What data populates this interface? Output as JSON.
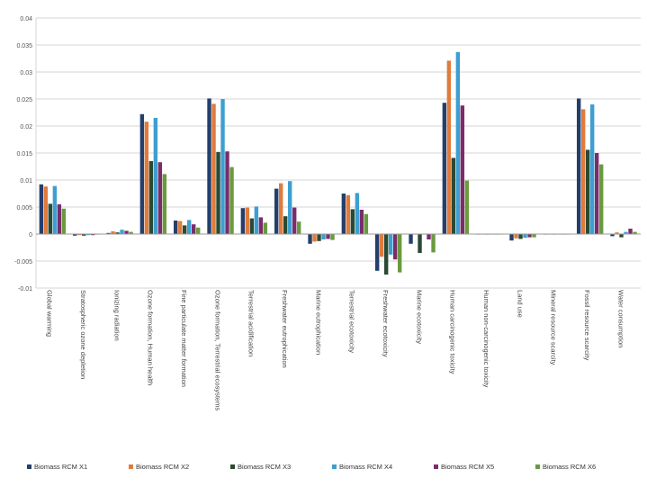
{
  "chart_data": {
    "type": "bar",
    "title": "",
    "xlabel": "",
    "ylabel": "",
    "ylim": [
      -0.01,
      0.04
    ],
    "yticks": [
      -0.01,
      -0.005,
      0,
      0.005,
      0.01,
      0.015,
      0.02,
      0.025,
      0.03,
      0.035,
      0.04
    ],
    "ytick_labels": [
      "-0.01",
      "-0.005",
      "0",
      "0.005",
      "0.01",
      "0.015",
      "0.02",
      "0.025",
      "0.03",
      "0.035",
      "0.04"
    ],
    "grid": true,
    "legend_position": "bottom",
    "categories": [
      "Global warming",
      "Stratospheric ozone depletion",
      "Ionizing radiation",
      "Ozone formation, Human health",
      "Fine particulate matter formation",
      "Ozone formation, Terrestrial ecosystems",
      "Terrestrial acidification",
      "Freshwater eutrophication",
      "Marine eutrophication",
      "Terrestrial ecotoxicity",
      "Freshwater ecotoxicity",
      "Marine ecotoxicity",
      "Human carcinogenic toxicity",
      "Human non-carcinogenic toxicity",
      "Land use",
      "Mineral resource scarcity",
      "Fossil resource scarcity",
      "Water consumption"
    ],
    "series": [
      {
        "name": "Biomass RCM X1",
        "color": "#243f6b",
        "values": [
          0.0092,
          -0.0003,
          0.0002,
          0.0222,
          0.0025,
          0.0251,
          0.0048,
          0.0084,
          -0.0018,
          0.0075,
          -0.0068,
          -0.0018,
          0.0243,
          -0.0001,
          -0.0012,
          0.0,
          0.0251,
          -0.0004
        ]
      },
      {
        "name": "Biomass RCM X2",
        "color": "#e07b3c",
        "values": [
          0.0088,
          -0.0002,
          0.0005,
          0.0208,
          0.0024,
          0.0241,
          0.0049,
          0.0094,
          -0.0014,
          0.0072,
          -0.0042,
          -0.0001,
          0.0321,
          -0.0001,
          -0.0008,
          0.0,
          0.0231,
          0.0003
        ]
      },
      {
        "name": "Biomass RCM X3",
        "color": "#2a4a33",
        "values": [
          0.0056,
          -0.0003,
          0.0003,
          0.0135,
          0.0016,
          0.0152,
          0.0029,
          0.0033,
          -0.0013,
          0.0046,
          -0.0075,
          -0.0035,
          0.0141,
          -0.0001,
          -0.0009,
          0.0,
          0.0156,
          -0.0006
        ]
      },
      {
        "name": "Biomass RCM X4",
        "color": "#3d9fd1",
        "values": [
          0.0089,
          -0.0002,
          0.0008,
          0.0215,
          0.0026,
          0.025,
          0.0051,
          0.0098,
          -0.001,
          0.0076,
          -0.0038,
          -0.0001,
          0.0337,
          -0.0001,
          -0.0007,
          0.0,
          0.024,
          0.0004
        ]
      },
      {
        "name": "Biomass RCM X5",
        "color": "#7a2d6a",
        "values": [
          0.0055,
          -0.0002,
          0.0006,
          0.0133,
          0.0018,
          0.0153,
          0.0031,
          0.0049,
          -0.0009,
          0.0045,
          -0.0047,
          -0.001,
          0.0238,
          -0.0001,
          -0.0006,
          0.0,
          0.015,
          0.001
        ]
      },
      {
        "name": "Biomass RCM X6",
        "color": "#6a9a3e",
        "values": [
          0.0047,
          -0.0001,
          0.0004,
          0.0111,
          0.0012,
          0.0124,
          0.0021,
          0.0023,
          -0.0011,
          0.0037,
          -0.0071,
          -0.0034,
          0.0099,
          -0.0001,
          -0.0006,
          0.0,
          0.0129,
          0.0004
        ]
      }
    ]
  }
}
